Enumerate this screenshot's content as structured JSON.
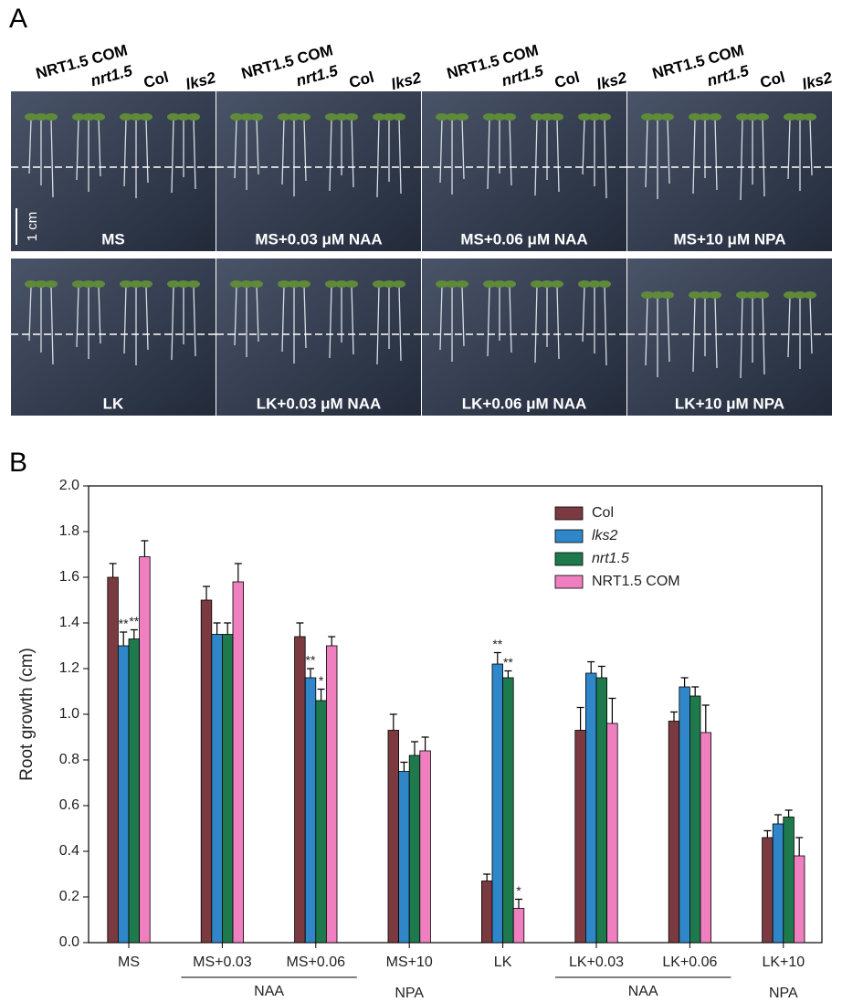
{
  "panel_a": {
    "label": "A",
    "genotype_headers": [
      [
        "NRT1.5 COM",
        "nrt1.5",
        "Col",
        "lks2"
      ],
      [
        "NRT1.5 COM",
        "nrt1.5",
        "Col",
        "lks2"
      ],
      [
        "NRT1.5 COM",
        "nrt1.5",
        "Col",
        "lks2"
      ],
      [
        "NRT1.5 COM",
        "nrt1.5",
        "Col",
        "lks2"
      ]
    ],
    "conditions": [
      [
        "MS",
        "MS+0.03 μM NAA",
        "MS+0.06 μM NAA",
        "MS+10 μM NPA"
      ],
      [
        "LK",
        "LK+0.03 μM NAA",
        "LK+0.06 μM NAA",
        "LK+10 μM NPA"
      ]
    ],
    "scale_bar": "1 cm"
  },
  "chart_data": {
    "type": "bar",
    "panel_label": "B",
    "y_label": "Root growth (cm)",
    "categories": [
      "MS",
      "MS+0.03",
      "MS+0.06",
      "MS+10",
      "LK",
      "LK+0.03",
      "LK+0.06",
      "LK+10"
    ],
    "group_labels": [
      {
        "label": "NAA",
        "span": [
          "MS+0.03",
          "MS+0.06"
        ]
      },
      {
        "label": "NPA",
        "span": [
          "MS+10",
          "MS+10"
        ]
      },
      {
        "label": "NAA",
        "span": [
          "LK+0.03",
          "LK+0.06"
        ]
      },
      {
        "label": "NPA",
        "span": [
          "LK+10",
          "LK+10"
        ]
      }
    ],
    "series": [
      {
        "name": "Col",
        "color": "#7b3a40",
        "values": [
          1.6,
          1.5,
          1.34,
          0.93,
          0.27,
          0.93,
          0.97,
          0.46
        ],
        "errors": [
          0.06,
          0.06,
          0.06,
          0.07,
          0.03,
          0.1,
          0.04,
          0.03
        ],
        "significance": [
          null,
          null,
          null,
          null,
          null,
          null,
          null,
          null
        ]
      },
      {
        "name": "lks2",
        "color": "#2f86c8",
        "values": [
          1.3,
          1.35,
          1.16,
          0.75,
          1.22,
          1.18,
          1.12,
          0.52
        ],
        "errors": [
          0.06,
          0.05,
          0.04,
          0.04,
          0.05,
          0.05,
          0.04,
          0.04
        ],
        "significance": [
          "**",
          null,
          "**",
          null,
          "**",
          null,
          null,
          null
        ]
      },
      {
        "name": "nrt1.5",
        "color": "#1e7a4d",
        "values": [
          1.33,
          1.35,
          1.06,
          0.82,
          1.16,
          1.16,
          1.08,
          0.55
        ],
        "errors": [
          0.04,
          0.05,
          0.05,
          0.06,
          0.03,
          0.05,
          0.04,
          0.03
        ],
        "significance": [
          "**",
          null,
          "*",
          null,
          "**",
          null,
          null,
          null
        ]
      },
      {
        "name": "NRT1.5 COM",
        "color": "#f07fc0",
        "values": [
          1.69,
          1.58,
          1.3,
          0.84,
          0.15,
          0.96,
          0.92,
          0.38
        ],
        "errors": [
          0.07,
          0.08,
          0.04,
          0.06,
          0.04,
          0.11,
          0.12,
          0.08
        ],
        "significance": [
          null,
          null,
          null,
          null,
          "*",
          null,
          null,
          null
        ]
      }
    ],
    "ylim": [
      0,
      2.0
    ],
    "yticks": [
      {
        "value": 0,
        "label": "0.0"
      },
      {
        "value": 0.2,
        "label": "0.2"
      },
      {
        "value": 0.4,
        "label": "0.4"
      },
      {
        "value": 0.6,
        "label": "0.6"
      },
      {
        "value": 0.8,
        "label": "0.8"
      },
      {
        "value": 1.0,
        "label": "1.0"
      },
      {
        "value": 1.2,
        "label": "1.2"
      },
      {
        "value": 1.4,
        "label": "1.4"
      },
      {
        "value": 1.6,
        "label": "1.6"
      },
      {
        "value": 1.8,
        "label": "1.8"
      },
      {
        "value": 2.0,
        "label": "2.0"
      }
    ],
    "grid": false,
    "legend_position": "upper right"
  }
}
